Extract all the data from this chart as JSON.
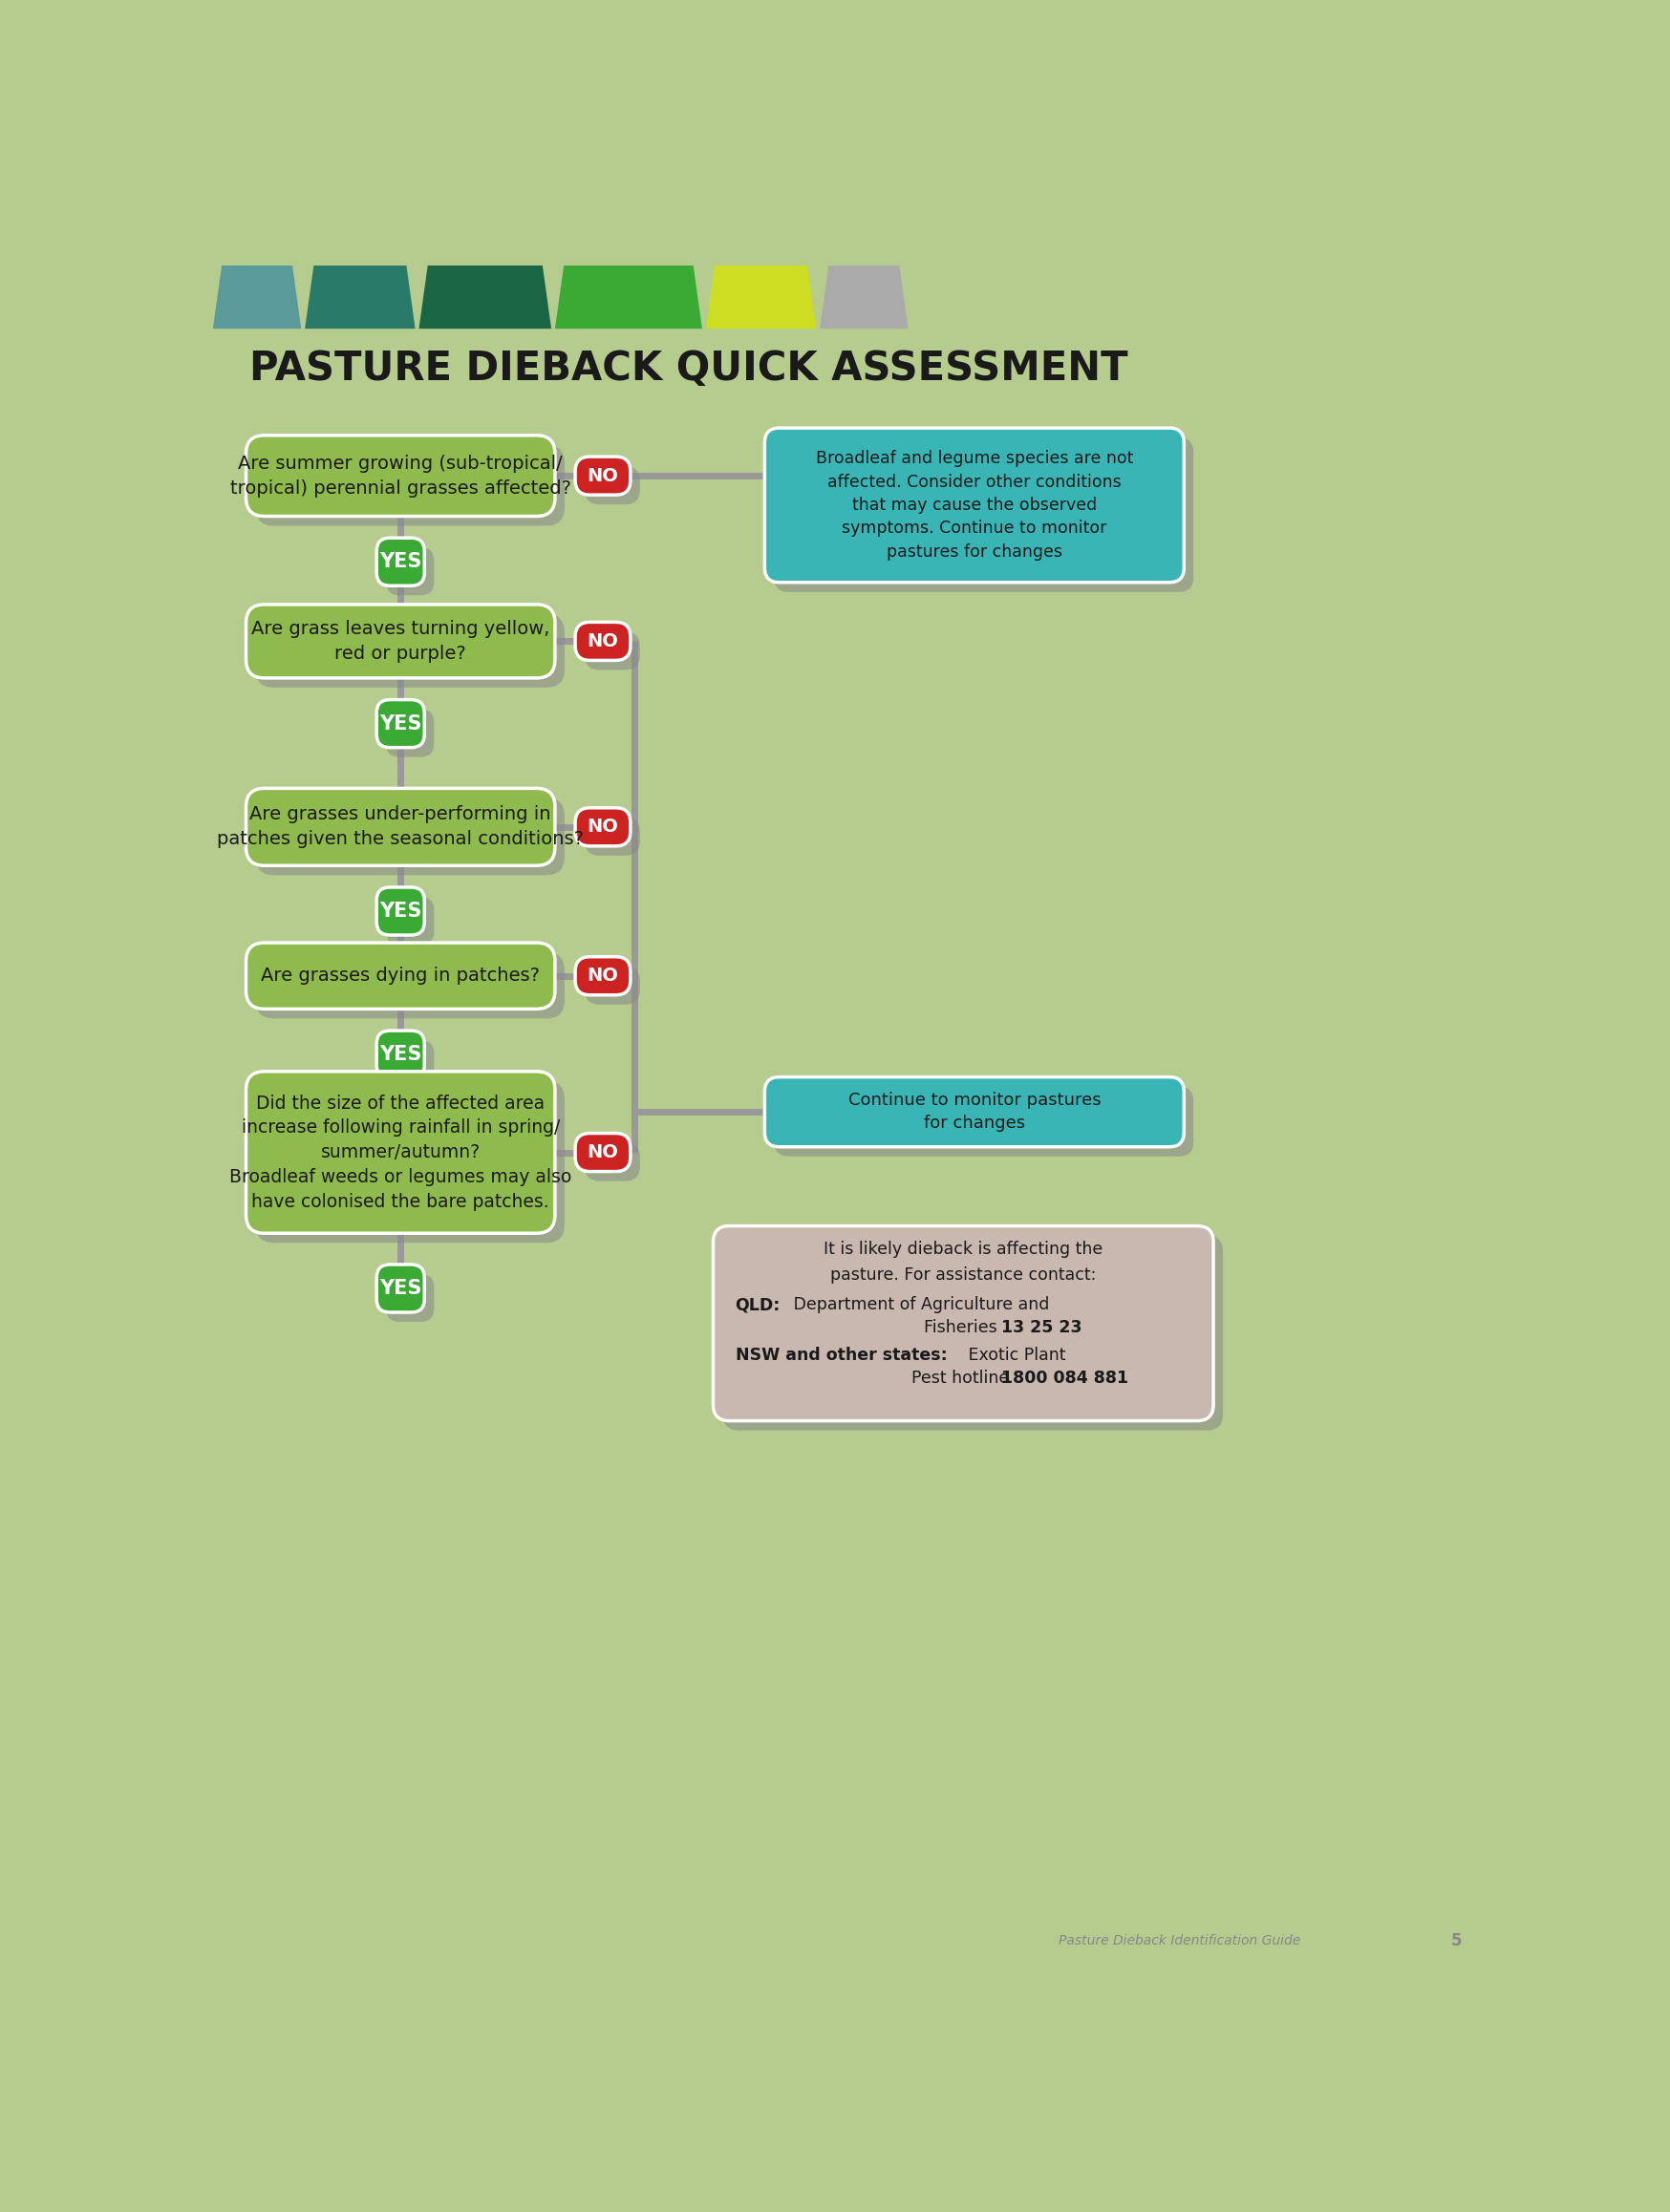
{
  "title": "PASTURE DIEBACK QUICK ASSESSMENT",
  "bg_color": "#b5cc8e",
  "question_box_color": "#8fba4e",
  "shadow_color": "#888888",
  "question_text_color": "#1a1a1a",
  "yes_box_color": "#3aaa35",
  "yes_text_color": "#ffffff",
  "no_box_color": "#cc2222",
  "no_text_color": "#ffffff",
  "teal_box_color": "#3ab5b5",
  "teal_text_color": "#1a1a1a",
  "pink_box_color": "#c8b8b0",
  "pink_text_color": "#1a1a1a",
  "connector_color": "#999999",
  "title_color": "#1a1a1a",
  "footer_text": "Pasture Dieback Identification Guide",
  "footer_page": "5",
  "footer_color": "#888888",
  "header_colors": [
    "#5b9a9a",
    "#2a7a6a",
    "#1a6644",
    "#3aaa35",
    "#ccdd22",
    "#aaaaaa"
  ],
  "header_widths": [
    1.2,
    1.5,
    1.8,
    2.0,
    1.5,
    1.2
  ],
  "questions": [
    "Are summer growing (sub-tropical/\ntropical) perennial grasses affected?",
    "Are grass leaves turning yellow,\nred or purple?",
    "Are grasses under-performing in\npatches given the seasonal conditions?",
    "Are grasses dying in patches?",
    "Did the size of the affected area\nincrease following rainfall in spring/\nsummer/autumn?\nBroadleaf weeds or legumes may also\nhave colonised the bare patches."
  ],
  "teal_box1_text": "Broadleaf and legume species are not\naffected. Consider other conditions\nthat may cause the observed\nsymptoms. Continue to monitor\npastures for changes",
  "teal_box2_text": "Continue to monitor pastures\nfor changes"
}
